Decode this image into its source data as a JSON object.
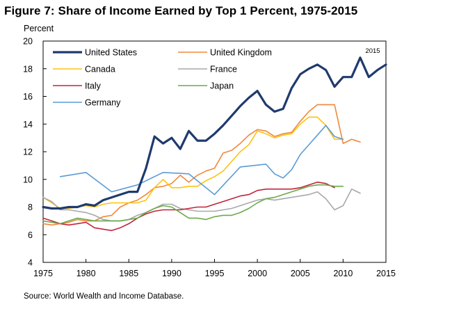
{
  "figure": {
    "title": "Figure 7: Share of Income Earned by Top 1 Percent, 1975-2015",
    "source": "Source: World Wealth and Income Database."
  },
  "chart_data": {
    "type": "line",
    "title": "Figure 7: Share of Income Earned by Top 1 Percent, 1975-2015",
    "ylabel": "Percent",
    "xlabel": "",
    "xlim": [
      1975,
      2015
    ],
    "ylim": [
      4,
      20
    ],
    "xticks": [
      1975,
      1980,
      1985,
      1990,
      1995,
      2000,
      2005,
      2010,
      2015
    ],
    "yticks": [
      4,
      6,
      8,
      10,
      12,
      14,
      16,
      18,
      20
    ],
    "grid": false,
    "legend_position": "top-left",
    "annotation": "2015",
    "series": [
      {
        "name": "United States",
        "color": "#1f3a6e",
        "width": 3.2,
        "x": [
          1975,
          1976,
          1977,
          1978,
          1979,
          1980,
          1981,
          1982,
          1983,
          1984,
          1985,
          1986,
          1987,
          1988,
          1989,
          1990,
          1991,
          1992,
          1993,
          1994,
          1995,
          1996,
          1997,
          1998,
          1999,
          2000,
          2001,
          2002,
          2003,
          2004,
          2005,
          2006,
          2007,
          2008,
          2009,
          2010,
          2011,
          2012,
          2013,
          2014,
          2015
        ],
        "values": [
          8.0,
          7.9,
          7.9,
          8.0,
          8.0,
          8.2,
          8.1,
          8.5,
          8.7,
          8.9,
          9.1,
          9.1,
          10.8,
          13.1,
          12.6,
          13.0,
          12.2,
          13.5,
          12.8,
          12.8,
          13.3,
          13.9,
          14.6,
          15.3,
          15.9,
          16.4,
          15.4,
          14.9,
          15.1,
          16.6,
          17.6,
          18.0,
          18.3,
          17.9,
          16.7,
          17.4,
          17.4,
          18.8,
          17.4,
          17.9,
          18.3
        ]
      },
      {
        "name": "United Kingdom",
        "color": "#f0883a",
        "width": 1.6,
        "x": [
          1975,
          1976,
          1977,
          1978,
          1979,
          1980,
          1981,
          1982,
          1983,
          1984,
          1985,
          1986,
          1987,
          1988,
          1989,
          1990,
          1991,
          1992,
          1993,
          1994,
          1995,
          1996,
          1997,
          1998,
          1999,
          2000,
          2001,
          2002,
          2003,
          2004,
          2005,
          2006,
          2007,
          2008,
          2009,
          2010,
          2011,
          2012
        ],
        "values": [
          6.8,
          6.7,
          6.8,
          6.9,
          7.1,
          7.0,
          7.0,
          7.3,
          7.4,
          8.0,
          8.3,
          8.5,
          8.9,
          9.4,
          9.5,
          9.7,
          10.3,
          9.8,
          10.3,
          10.6,
          10.8,
          11.9,
          12.1,
          12.6,
          13.2,
          13.6,
          13.5,
          13.1,
          13.3,
          13.4,
          14.2,
          14.9,
          15.4,
          15.4,
          15.4,
          12.6,
          12.9,
          12.7
        ]
      },
      {
        "name": "Canada",
        "color": "#ffc20e",
        "width": 1.6,
        "x": [
          1975,
          1976,
          1977,
          1978,
          1979,
          1980,
          1981,
          1982,
          1983,
          1984,
          1985,
          1986,
          1987,
          1988,
          1989,
          1990,
          1991,
          1992,
          1993,
          1994,
          1995,
          1996,
          1997,
          1998,
          1999,
          2000,
          2001,
          2002,
          2003,
          2004,
          2005,
          2006,
          2007,
          2008,
          2009,
          2010
        ],
        "values": [
          8.7,
          8.3,
          7.9,
          7.9,
          8.0,
          8.1,
          8.0,
          8.2,
          8.3,
          8.3,
          8.3,
          8.3,
          8.5,
          9.4,
          10.0,
          9.4,
          9.4,
          9.5,
          9.5,
          9.9,
          10.2,
          10.6,
          11.3,
          12.0,
          12.5,
          13.5,
          13.3,
          13.0,
          13.2,
          13.3,
          14.0,
          14.5,
          14.5,
          13.9,
          12.9,
          12.9
        ]
      },
      {
        "name": "France",
        "color": "#a8a8a8",
        "width": 1.6,
        "x": [
          1975,
          1976,
          1977,
          1978,
          1979,
          1980,
          1981,
          1982,
          1983,
          1984,
          1985,
          1986,
          1987,
          1988,
          1989,
          1990,
          1991,
          1992,
          1993,
          1994,
          1995,
          1996,
          1997,
          1998,
          1999,
          2000,
          2001,
          2002,
          2003,
          2004,
          2005,
          2006,
          2007,
          2008,
          2009,
          2010,
          2011,
          2012
        ],
        "values": [
          8.7,
          8.4,
          7.8,
          7.8,
          7.7,
          7.6,
          7.4,
          7.1,
          7.0,
          7.0,
          7.1,
          7.4,
          7.6,
          7.9,
          8.2,
          8.2,
          7.9,
          7.8,
          7.7,
          7.7,
          7.7,
          7.8,
          7.9,
          8.1,
          8.3,
          8.5,
          8.6,
          8.5,
          8.6,
          8.7,
          8.8,
          8.9,
          9.1,
          8.6,
          7.8,
          8.1,
          9.3,
          9.0
        ]
      },
      {
        "name": "Italy",
        "color": "#c0243b",
        "width": 1.6,
        "x": [
          1975,
          1976,
          1977,
          1978,
          1979,
          1980,
          1981,
          1982,
          1983,
          1984,
          1985,
          1986,
          1987,
          1988,
          1989,
          1990,
          1991,
          1992,
          1993,
          1994,
          1995,
          1996,
          1997,
          1998,
          1999,
          2000,
          2001,
          2002,
          2003,
          2004,
          2005,
          2006,
          2007,
          2008,
          2009
        ],
        "values": [
          7.2,
          7.0,
          6.8,
          6.7,
          6.8,
          6.9,
          6.5,
          6.4,
          6.3,
          6.5,
          6.8,
          7.2,
          7.5,
          7.7,
          7.8,
          7.8,
          7.8,
          7.9,
          8.0,
          8.0,
          8.2,
          8.4,
          8.6,
          8.8,
          8.9,
          9.2,
          9.3,
          9.3,
          9.3,
          9.3,
          9.4,
          9.6,
          9.8,
          9.7,
          9.4
        ]
      },
      {
        "name": "Japan",
        "color": "#6aaa4a",
        "width": 1.6,
        "x": [
          1975,
          1976,
          1977,
          1978,
          1979,
          1980,
          1981,
          1982,
          1983,
          1984,
          1985,
          1986,
          1987,
          1988,
          1989,
          1990,
          1991,
          1992,
          1993,
          1994,
          1995,
          1996,
          1997,
          1998,
          1999,
          2000,
          2001,
          2002,
          2003,
          2004,
          2005,
          2006,
          2007,
          2008,
          2009,
          2010
        ],
        "values": [
          7.0,
          6.9,
          6.8,
          7.0,
          7.2,
          7.1,
          7.0,
          7.0,
          7.0,
          7.0,
          7.1,
          7.2,
          7.6,
          7.9,
          8.1,
          8.0,
          7.6,
          7.2,
          7.2,
          7.1,
          7.3,
          7.4,
          7.4,
          7.6,
          7.9,
          8.3,
          8.6,
          8.7,
          8.9,
          9.1,
          9.3,
          9.5,
          9.6,
          9.6,
          9.5,
          9.5
        ]
      },
      {
        "name": "Germany",
        "color": "#5b9bd5",
        "width": 1.6,
        "x": [
          1977,
          1980,
          1983,
          1986,
          1989,
          1992,
          1995,
          1998,
          2001,
          2002,
          2003,
          2004,
          2005,
          2006,
          2007,
          2008,
          2009,
          2010
        ],
        "values": [
          10.2,
          10.5,
          9.1,
          9.6,
          10.5,
          10.4,
          8.9,
          10.9,
          11.1,
          10.4,
          10.1,
          10.7,
          11.8,
          12.5,
          13.2,
          13.9,
          13.1,
          12.9
        ]
      }
    ]
  }
}
